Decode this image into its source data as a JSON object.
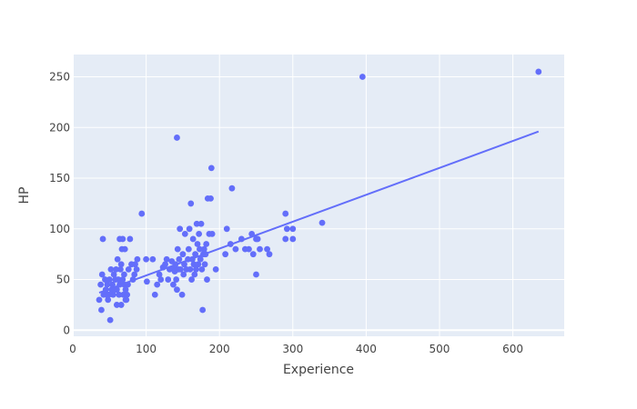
{
  "chart_data": {
    "type": "scatter",
    "xlabel": "Experience",
    "ylabel": "HP",
    "xlim": [
      0,
      670
    ],
    "ylim": [
      -6,
      272
    ],
    "x_ticks": [
      0,
      100,
      200,
      300,
      400,
      500,
      600
    ],
    "y_ticks": [
      0,
      50,
      100,
      150,
      200,
      250
    ],
    "grid": true,
    "colors": {
      "background": "#E5ECF6",
      "grid": "#FFFFFF",
      "marker": "#636EFA",
      "line": "#636EFA"
    },
    "trendline": {
      "x": [
        36,
        635
      ],
      "y": [
        37,
        196
      ]
    },
    "points": [
      [
        36,
        30
      ],
      [
        38,
        45
      ],
      [
        39,
        20
      ],
      [
        40,
        55
      ],
      [
        41,
        90
      ],
      [
        42,
        35
      ],
      [
        44,
        50
      ],
      [
        45,
        40
      ],
      [
        46,
        35
      ],
      [
        47,
        45
      ],
      [
        48,
        30
      ],
      [
        49,
        35
      ],
      [
        50,
        50
      ],
      [
        51,
        10
      ],
      [
        52,
        60
      ],
      [
        53,
        40
      ],
      [
        54,
        45
      ],
      [
        55,
        35
      ],
      [
        56,
        55
      ],
      [
        57,
        40
      ],
      [
        58,
        50
      ],
      [
        59,
        60
      ],
      [
        60,
        25
      ],
      [
        60,
        40
      ],
      [
        61,
        70
      ],
      [
        62,
        50
      ],
      [
        63,
        35
      ],
      [
        64,
        90
      ],
      [
        64,
        45
      ],
      [
        65,
        60
      ],
      [
        66,
        25
      ],
      [
        66,
        65
      ],
      [
        67,
        80
      ],
      [
        68,
        90
      ],
      [
        68,
        50
      ],
      [
        69,
        35
      ],
      [
        70,
        45
      ],
      [
        70,
        55
      ],
      [
        71,
        80
      ],
      [
        72,
        40
      ],
      [
        72,
        30
      ],
      [
        73,
        30
      ],
      [
        74,
        35
      ],
      [
        75,
        45
      ],
      [
        76,
        60
      ],
      [
        78,
        90
      ],
      [
        80,
        65
      ],
      [
        82,
        50
      ],
      [
        84,
        55
      ],
      [
        85,
        65
      ],
      [
        87,
        60
      ],
      [
        88,
        70
      ],
      [
        94,
        115
      ],
      [
        100,
        70
      ],
      [
        101,
        48
      ],
      [
        109,
        70
      ],
      [
        112,
        35
      ],
      [
        115,
        45
      ],
      [
        118,
        55
      ],
      [
        120,
        50
      ],
      [
        123,
        62
      ],
      [
        126,
        65
      ],
      [
        128,
        70
      ],
      [
        130,
        50
      ],
      [
        132,
        60
      ],
      [
        135,
        68
      ],
      [
        137,
        45
      ],
      [
        138,
        62
      ],
      [
        139,
        58
      ],
      [
        140,
        65
      ],
      [
        141,
        50
      ],
      [
        142,
        40
      ],
      [
        142,
        190
      ],
      [
        143,
        80
      ],
      [
        144,
        60
      ],
      [
        145,
        70
      ],
      [
        146,
        100
      ],
      [
        147,
        60
      ],
      [
        149,
        35
      ],
      [
        150,
        75
      ],
      [
        151,
        55
      ],
      [
        152,
        65
      ],
      [
        153,
        95
      ],
      [
        155,
        60
      ],
      [
        157,
        70
      ],
      [
        158,
        80
      ],
      [
        159,
        100
      ],
      [
        160,
        60
      ],
      [
        161,
        125
      ],
      [
        162,
        50
      ],
      [
        163,
        70
      ],
      [
        164,
        90
      ],
      [
        165,
        65
      ],
      [
        166,
        55
      ],
      [
        167,
        75
      ],
      [
        168,
        60
      ],
      [
        169,
        105
      ],
      [
        170,
        85
      ],
      [
        171,
        65
      ],
      [
        172,
        95
      ],
      [
        173,
        80
      ],
      [
        174,
        70
      ],
      [
        175,
        105
      ],
      [
        176,
        60
      ],
      [
        177,
        20
      ],
      [
        178,
        75
      ],
      [
        179,
        80
      ],
      [
        180,
        65
      ],
      [
        181,
        75
      ],
      [
        182,
        85
      ],
      [
        183,
        50
      ],
      [
        184,
        130
      ],
      [
        186,
        95
      ],
      [
        188,
        130
      ],
      [
        189,
        160
      ],
      [
        190,
        95
      ],
      [
        195,
        60
      ],
      [
        208,
        75
      ],
      [
        210,
        100
      ],
      [
        215,
        85
      ],
      [
        217,
        140
      ],
      [
        222,
        80
      ],
      [
        230,
        90
      ],
      [
        235,
        80
      ],
      [
        240,
        80
      ],
      [
        244,
        95
      ],
      [
        246,
        75
      ],
      [
        250,
        90
      ],
      [
        250,
        55
      ],
      [
        252,
        90
      ],
      [
        255,
        80
      ],
      [
        265,
        80
      ],
      [
        268,
        75
      ],
      [
        290,
        115
      ],
      [
        290,
        90
      ],
      [
        292,
        100
      ],
      [
        300,
        100
      ],
      [
        300,
        90
      ],
      [
        340,
        106
      ],
      [
        395,
        250
      ],
      [
        635,
        255
      ]
    ]
  }
}
